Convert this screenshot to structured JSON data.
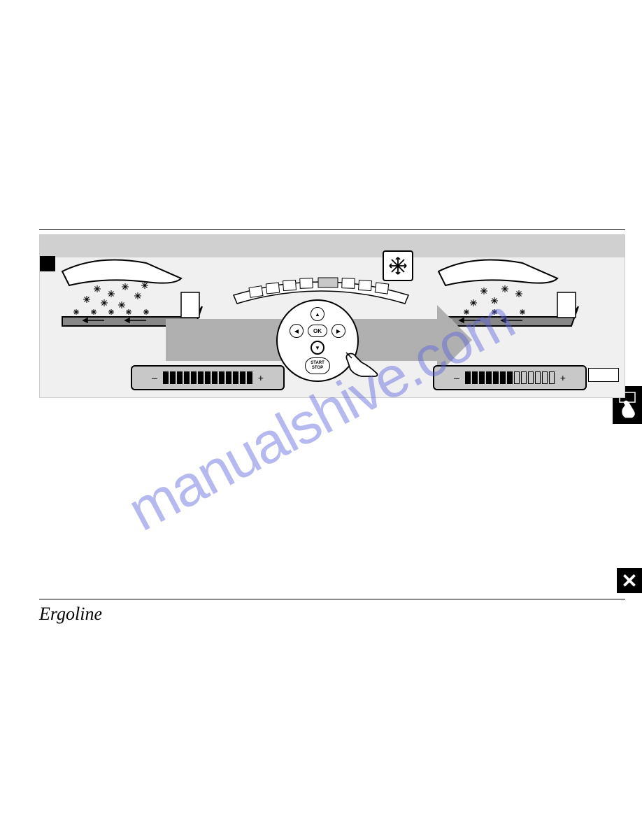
{
  "watermark": {
    "text": "manualshive.com",
    "color": "rgba(90,100,220,0.45)",
    "fontsize": 82
  },
  "brand": {
    "signature": "Ergoline"
  },
  "remote": {
    "ok_label": "OK",
    "startstop_line1": "START",
    "startstop_line2": "STOP",
    "up": "▲",
    "down": "▼",
    "left": "◀",
    "right": "▶"
  },
  "close_icon": {
    "glyph": "✕"
  },
  "display": {
    "minus": "–",
    "plus": "+",
    "left_filled": 13,
    "left_total": 13,
    "right_filled": 7,
    "right_total": 13
  },
  "colors": {
    "diagram_bg": "#f0f0f0",
    "strip_bg": "#d0d0d0",
    "panel_bg": "#c8c8c8",
    "arrow_bg": "#b0b0b0",
    "black": "#000000",
    "white": "#ffffff"
  }
}
